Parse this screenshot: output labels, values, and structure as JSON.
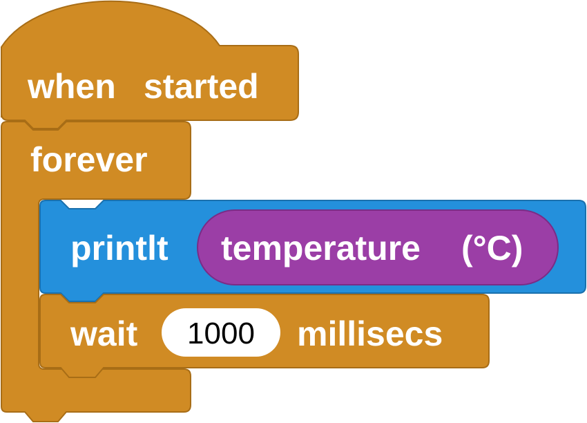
{
  "program": {
    "hat": {
      "word1": "when",
      "word2": "started"
    },
    "loop": {
      "label": "forever"
    },
    "print": {
      "command": "printlt",
      "reporter": {
        "word1": "temperature",
        "word2": "(°C)"
      }
    },
    "wait": {
      "command": "wait",
      "value": "1000",
      "unit": "millisecs"
    }
  },
  "colors": {
    "control": "#d08b24",
    "control_stroke": "#a86d16",
    "output": "#2490dc",
    "output_stroke": "#1a70ad",
    "sensor": "#9b3ea6",
    "sensor_stroke": "#7a2c86",
    "label": "#ffffff",
    "input_field": "#ffffff",
    "input_text": "#000000"
  }
}
